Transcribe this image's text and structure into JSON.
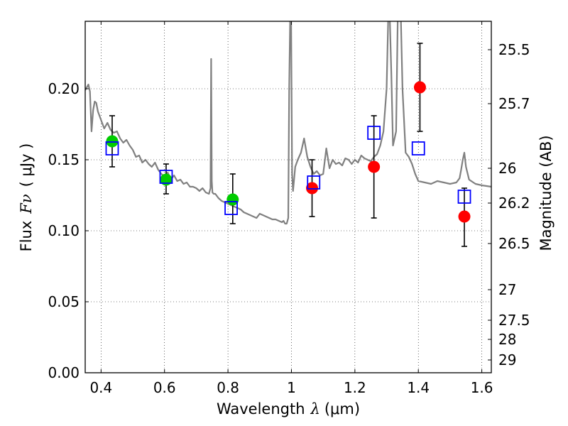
{
  "chart_data": {
    "type": "scatter",
    "xlabel": "Wavelength",
    "xlabel_symbol": "λ",
    "xlabel_unit": "(μm)",
    "ylabel": "Flux",
    "ylabel_symbol": "Fν",
    "ylabel_unit": "( μJy )",
    "ylabel_right": "Magnitude (AB)",
    "xlim": [
      0.35,
      1.63
    ],
    "ylim": [
      0.0,
      0.2475
    ],
    "grid": true,
    "x_ticks": [
      0.4,
      0.6,
      0.8,
      1.0,
      1.2,
      1.4,
      1.6
    ],
    "x_tick_labels": [
      "0.4",
      "0.6",
      "0.8",
      "1",
      "1.2",
      "1.4",
      "1.6"
    ],
    "y_ticks": [
      0.0,
      0.05,
      0.1,
      0.15,
      0.2
    ],
    "y_tick_labels": [
      "0.00",
      "0.05",
      "0.10",
      "0.15",
      "0.20"
    ],
    "right_ticks": [
      {
        "label": "25.5",
        "flux": 0.2275
      },
      {
        "label": "25.7",
        "flux": 0.1895
      },
      {
        "label": "26",
        "flux": 0.144
      },
      {
        "label": "26.2",
        "flux": 0.1195
      },
      {
        "label": "26.5",
        "flux": 0.091
      },
      {
        "label": "27",
        "flux": 0.0585
      },
      {
        "label": "27.5",
        "flux": 0.037
      },
      {
        "label": "28",
        "flux": 0.0235
      },
      {
        "label": "29",
        "flux": 0.009
      }
    ],
    "model_spectrum": {
      "name": "model spectrum",
      "color": "#808080",
      "x": [
        0.35,
        0.36,
        0.365,
        0.37,
        0.375,
        0.38,
        0.385,
        0.39,
        0.4,
        0.41,
        0.42,
        0.43,
        0.44,
        0.45,
        0.46,
        0.47,
        0.48,
        0.49,
        0.5,
        0.51,
        0.52,
        0.53,
        0.54,
        0.55,
        0.56,
        0.57,
        0.58,
        0.59,
        0.6,
        0.61,
        0.62,
        0.63,
        0.64,
        0.65,
        0.66,
        0.67,
        0.68,
        0.69,
        0.7,
        0.71,
        0.72,
        0.73,
        0.74,
        0.745,
        0.747,
        0.749,
        0.751,
        0.755,
        0.76,
        0.77,
        0.78,
        0.79,
        0.8,
        0.81,
        0.82,
        0.83,
        0.84,
        0.85,
        0.86,
        0.87,
        0.88,
        0.89,
        0.9,
        0.91,
        0.92,
        0.93,
        0.94,
        0.95,
        0.96,
        0.97,
        0.975,
        0.98,
        0.985,
        0.99,
        0.993,
        0.996,
        0.999,
        1.002,
        1.005,
        1.008,
        1.012,
        1.02,
        1.03,
        1.04,
        1.05,
        1.06,
        1.07,
        1.08,
        1.09,
        1.1,
        1.11,
        1.12,
        1.13,
        1.14,
        1.15,
        1.16,
        1.17,
        1.18,
        1.19,
        1.2,
        1.21,
        1.22,
        1.23,
        1.24,
        1.25,
        1.26,
        1.27,
        1.28,
        1.29,
        1.3,
        1.305,
        1.31,
        1.315,
        1.32,
        1.33,
        1.335,
        1.34,
        1.345,
        1.35,
        1.36,
        1.37,
        1.38,
        1.39,
        1.4,
        1.42,
        1.44,
        1.46,
        1.48,
        1.5,
        1.52,
        1.53,
        1.535,
        1.54,
        1.545,
        1.55,
        1.56,
        1.58,
        1.6,
        1.63
      ],
      "y": [
        0.199,
        0.203,
        0.198,
        0.17,
        0.185,
        0.191,
        0.19,
        0.184,
        0.178,
        0.172,
        0.176,
        0.171,
        0.169,
        0.17,
        0.165,
        0.162,
        0.164,
        0.16,
        0.157,
        0.152,
        0.153,
        0.148,
        0.15,
        0.147,
        0.145,
        0.148,
        0.143,
        0.14,
        0.138,
        0.141,
        0.136,
        0.139,
        0.135,
        0.136,
        0.133,
        0.134,
        0.131,
        0.131,
        0.13,
        0.128,
        0.13,
        0.127,
        0.126,
        0.13,
        0.221,
        0.135,
        0.127,
        0.126,
        0.126,
        0.123,
        0.121,
        0.12,
        0.119,
        0.118,
        0.117,
        0.116,
        0.115,
        0.113,
        0.112,
        0.111,
        0.11,
        0.109,
        0.112,
        0.111,
        0.11,
        0.109,
        0.108,
        0.108,
        0.107,
        0.106,
        0.107,
        0.105,
        0.105,
        0.109,
        0.2,
        0.25,
        0.25,
        0.14,
        0.128,
        0.135,
        0.145,
        0.15,
        0.155,
        0.165,
        0.152,
        0.145,
        0.14,
        0.142,
        0.139,
        0.14,
        0.158,
        0.144,
        0.15,
        0.147,
        0.148,
        0.146,
        0.151,
        0.15,
        0.147,
        0.15,
        0.148,
        0.153,
        0.151,
        0.15,
        0.149,
        0.152,
        0.154,
        0.16,
        0.17,
        0.2,
        0.25,
        0.25,
        0.21,
        0.16,
        0.17,
        0.25,
        0.25,
        0.25,
        0.2,
        0.155,
        0.152,
        0.147,
        0.14,
        0.135,
        0.134,
        0.133,
        0.135,
        0.134,
        0.133,
        0.134,
        0.137,
        0.143,
        0.15,
        0.155,
        0.145,
        0.136,
        0.133,
        0.132,
        0.131
      ]
    },
    "series": [
      {
        "name": "observed photometry (red)",
        "marker": "circle",
        "color": "#ff0000",
        "x": [
          1.065,
          1.26,
          1.405,
          1.545
        ],
        "y": [
          0.13,
          0.145,
          0.201,
          0.11
        ],
        "yerr_low": [
          0.11,
          0.109,
          0.17,
          0.089
        ],
        "yerr_high": [
          0.15,
          0.181,
          0.232,
          0.13
        ]
      },
      {
        "name": "observed photometry (green)",
        "marker": "circle",
        "color": "#00cc00",
        "x": [
          0.435,
          0.605,
          0.815
        ],
        "y": [
          0.163,
          0.136,
          0.122
        ],
        "yerr_low": [
          0.145,
          0.126,
          0.105
        ],
        "yerr_high": [
          0.181,
          0.147,
          0.14
        ]
      },
      {
        "name": "model photometry",
        "marker": "open-square",
        "color": "#0000ff",
        "x": [
          0.435,
          0.605,
          0.81,
          1.07,
          1.26,
          1.4,
          1.545
        ],
        "y": [
          0.158,
          0.138,
          0.116,
          0.134,
          0.169,
          0.158,
          0.124
        ]
      }
    ]
  }
}
